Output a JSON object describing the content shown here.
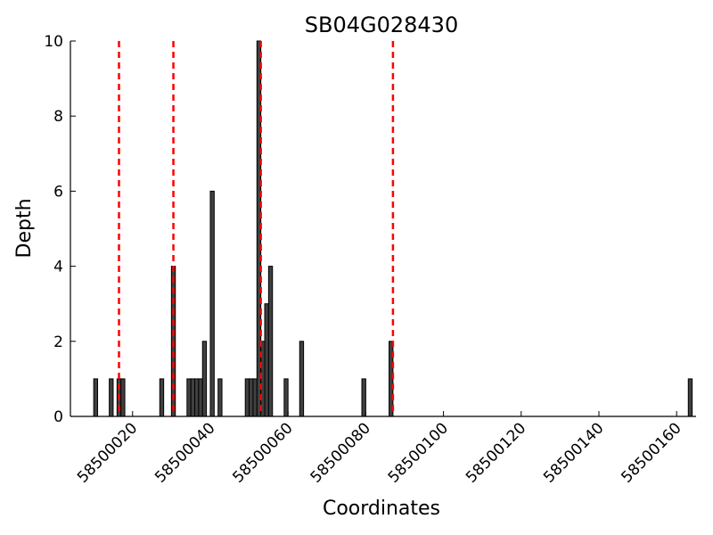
{
  "chart_data": {
    "type": "bar",
    "title": "SB04G028430",
    "xlabel": "Coordinates",
    "ylabel": "Depth",
    "xlim": [
      58500004,
      58500165
    ],
    "ylim": [
      0,
      10
    ],
    "xticks": [
      58500020,
      58500040,
      58500060,
      58500080,
      58500100,
      58500120,
      58500140,
      58500160
    ],
    "yticks": [
      0,
      2,
      4,
      6,
      8,
      10
    ],
    "grid": false,
    "bar_width": 1,
    "bars": [
      {
        "x": 58500010,
        "y": 1
      },
      {
        "x": 58500014,
        "y": 1
      },
      {
        "x": 58500016,
        "y": 1
      },
      {
        "x": 58500017,
        "y": 1
      },
      {
        "x": 58500027,
        "y": 1
      },
      {
        "x": 58500030,
        "y": 4
      },
      {
        "x": 58500034,
        "y": 1
      },
      {
        "x": 58500035,
        "y": 1
      },
      {
        "x": 58500036,
        "y": 1
      },
      {
        "x": 58500037,
        "y": 1
      },
      {
        "x": 58500038,
        "y": 2
      },
      {
        "x": 58500040,
        "y": 6
      },
      {
        "x": 58500042,
        "y": 1
      },
      {
        "x": 58500049,
        "y": 1
      },
      {
        "x": 58500050,
        "y": 1
      },
      {
        "x": 58500051,
        "y": 1
      },
      {
        "x": 58500052,
        "y": 10
      },
      {
        "x": 58500053,
        "y": 2
      },
      {
        "x": 58500054,
        "y": 3
      },
      {
        "x": 58500055,
        "y": 4
      },
      {
        "x": 58500059,
        "y": 1
      },
      {
        "x": 58500063,
        "y": 2
      },
      {
        "x": 58500079,
        "y": 1
      },
      {
        "x": 58500086,
        "y": 2
      },
      {
        "x": 58500163,
        "y": 1
      }
    ],
    "vertical_lines": [
      58500016.5,
      58500030.5,
      58500053,
      58500087
    ],
    "vertical_line_style": "dashed",
    "colors": {
      "bar": "#404040",
      "bar_edge": "#000000",
      "vertical_line": "#ff0000"
    }
  }
}
